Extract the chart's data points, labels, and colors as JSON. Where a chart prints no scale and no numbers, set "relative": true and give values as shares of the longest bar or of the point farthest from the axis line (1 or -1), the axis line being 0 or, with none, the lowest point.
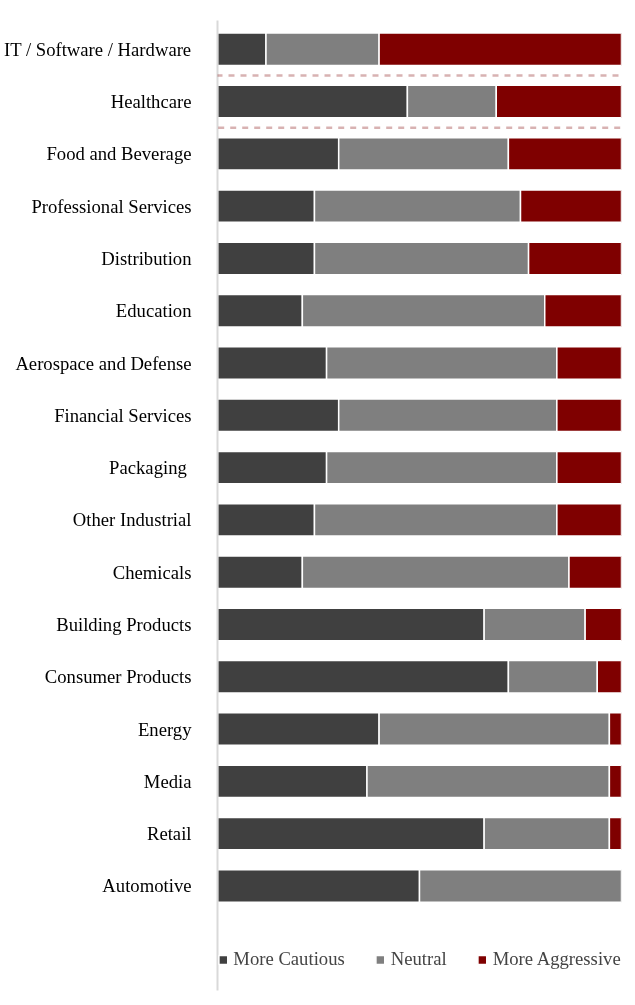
{
  "chart_data": {
    "type": "bar",
    "orientation": "horizontal",
    "stacked": true,
    "relative": true,
    "legend": "bottom",
    "grid": false,
    "categories": [
      "IT / Software / Hardware",
      "Healthcare",
      "Food and Beverage",
      "Professional Services",
      "Distribution",
      "Education",
      "Aerospace and Defense",
      "Financial Services",
      "Packaging ",
      "Other Industrial",
      "Chemicals",
      "Building Products",
      "Consumer Products",
      "Energy",
      "Media",
      "Retail",
      "Automotive"
    ],
    "series": [
      {
        "name": "More Cautious",
        "color": "#404040",
        "values": [
          0.12,
          0.47,
          0.3,
          0.24,
          0.24,
          0.21,
          0.27,
          0.3,
          0.27,
          0.24,
          0.21,
          0.66,
          0.72,
          0.4,
          0.37,
          0.66,
          0.5
        ]
      },
      {
        "name": "Neutral",
        "color": "#7f7f7f",
        "values": [
          0.28,
          0.22,
          0.42,
          0.51,
          0.53,
          0.6,
          0.57,
          0.54,
          0.57,
          0.6,
          0.66,
          0.25,
          0.22,
          0.57,
          0.6,
          0.31,
          0.5
        ]
      },
      {
        "name": "More Aggressive",
        "color": "#7f0000",
        "values": [
          0.6,
          0.31,
          0.28,
          0.25,
          0.23,
          0.19,
          0.16,
          0.16,
          0.16,
          0.16,
          0.13,
          0.09,
          0.06,
          0.03,
          0.03,
          0.03,
          0.0
        ]
      }
    ]
  }
}
